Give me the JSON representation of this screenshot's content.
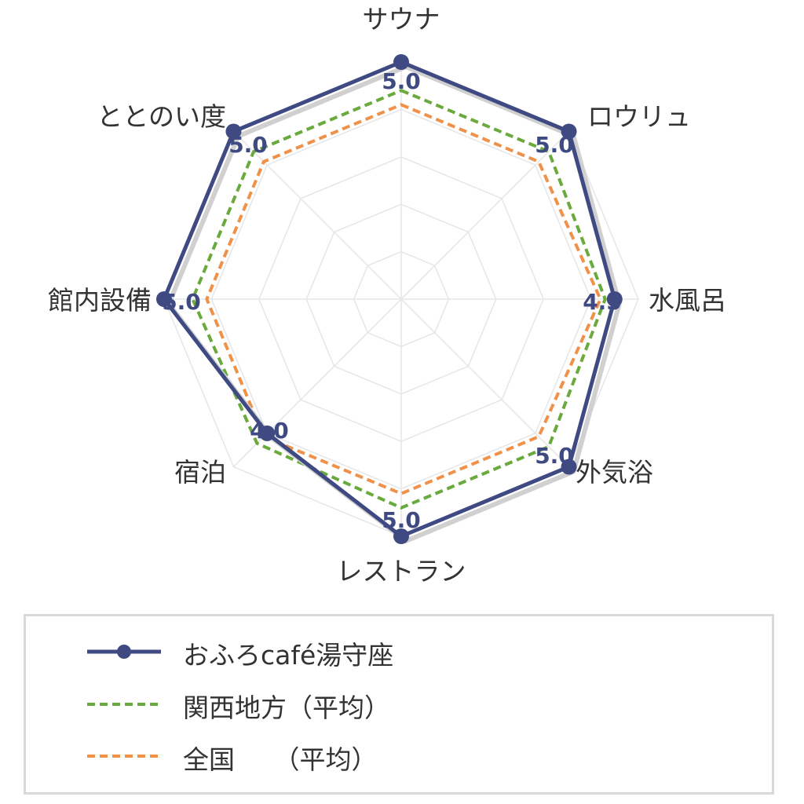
{
  "chart_data": {
    "type": "radar",
    "axes": [
      "サウナ",
      "ロウリュ",
      "水風呂",
      "外気浴",
      "レストラン",
      "宿泊",
      "館内設備",
      "ととのい度"
    ],
    "value_labels": [
      "5.0",
      "5.0",
      "4.5",
      "5.0",
      "5.0",
      "4.0",
      "5.0",
      "5.0"
    ],
    "range": [
      0,
      5
    ],
    "grid_levels": 5,
    "series": [
      {
        "name": "おふろcafé湯守座",
        "values": [
          5.0,
          5.0,
          4.5,
          5.0,
          5.0,
          4.0,
          5.0,
          5.0
        ],
        "color": "#3f4a82",
        "style": "solid-markers"
      },
      {
        "name": "関西地方（平均）",
        "values": [
          4.4,
          4.4,
          4.3,
          4.4,
          4.4,
          4.3,
          4.4,
          4.4
        ],
        "color": "#6aaa3c",
        "style": "dashed"
      },
      {
        "name": "全国　（平均）",
        "values": [
          4.1,
          4.1,
          4.2,
          4.1,
          4.1,
          4.1,
          4.1,
          4.1
        ],
        "color": "#f0914a",
        "style": "dashed"
      }
    ]
  },
  "legend": {
    "items": [
      {
        "label": "おふろcafé湯守座"
      },
      {
        "label": "関西地方（平均）"
      },
      {
        "label": "全国　　（平均）"
      }
    ]
  }
}
